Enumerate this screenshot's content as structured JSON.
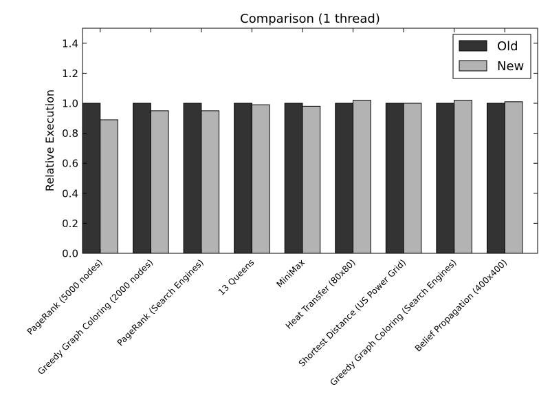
{
  "chart_data": {
    "type": "bar",
    "title": "Comparison (1 thread)",
    "xlabel": "",
    "ylabel": "Relative Execution",
    "ylim": [
      0,
      1.5
    ],
    "yticks": [
      "0.0",
      "0.2",
      "0.4",
      "0.6",
      "0.8",
      "1.0",
      "1.2",
      "1.4"
    ],
    "grid": false,
    "legend_position": "top-right",
    "categories": [
      "PageRank (5000 nodes)",
      "Greedy Graph Coloring (2000 nodes)",
      "PageRank (Search Engines)",
      "13 Queens",
      "MiniMax",
      "Heat Transfer (80x80)",
      "Shortest Distance (US Power Grid)",
      "Greedy Graph Coloring (Search Engines)",
      "Belief Propagation (400x400)"
    ],
    "series": [
      {
        "name": "Old",
        "color": "#333333",
        "values": [
          1.0,
          1.0,
          1.0,
          1.0,
          1.0,
          1.0,
          1.0,
          1.0,
          1.0
        ]
      },
      {
        "name": "New",
        "color": "#b3b3b3",
        "values": [
          0.89,
          0.95,
          0.95,
          0.99,
          0.98,
          1.02,
          1.0,
          1.02,
          1.01
        ]
      }
    ]
  }
}
